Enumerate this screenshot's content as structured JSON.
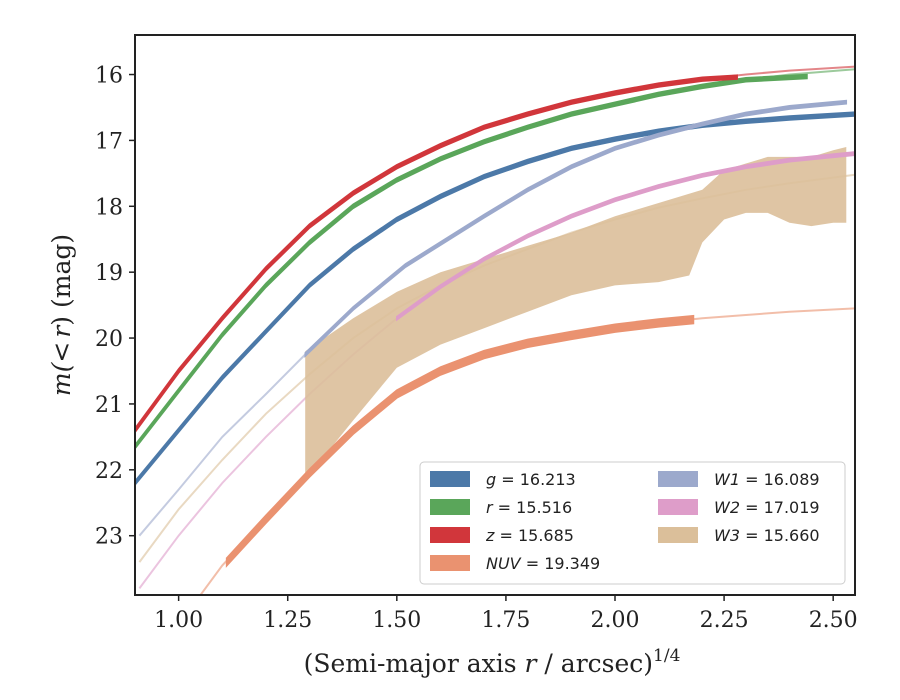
{
  "chart_data": {
    "type": "line",
    "xlabel_prefix": "(Semi-major axis ",
    "xlabel_var": "r",
    "xlabel_mid": " / arcsec)",
    "xlabel_exp": "1/4",
    "ylabel_prefix": "m(",
    "ylabel_lt": "<",
    "ylabel_var": "r",
    "ylabel_suffix": ") (mag)",
    "xlim": [
      0.9,
      2.55
    ],
    "ylim": [
      23.9,
      15.4
    ],
    "y_inverted": true,
    "x_ticks": [
      "1.00",
      "1.25",
      "1.50",
      "1.75",
      "2.00",
      "2.25",
      "2.50"
    ],
    "y_ticks": [
      "16",
      "17",
      "18",
      "19",
      "20",
      "21",
      "22",
      "23"
    ],
    "legend": {
      "placement": "lower-right",
      "entries": [
        {
          "band": "g",
          "value": "16.213",
          "color": "#4c79a8"
        },
        {
          "band": "W1",
          "value": "16.089",
          "color": "#9ca9cc"
        },
        {
          "band": "r",
          "value": "15.516",
          "color": "#5aa65a"
        },
        {
          "band": "W2",
          "value": "17.019",
          "color": "#de9dc9"
        },
        {
          "band": "z",
          "value": "15.685",
          "color": "#d1363b"
        },
        {
          "band": "W3",
          "value": "15.660",
          "color": "#dbbf9a"
        },
        {
          "band": "NUV",
          "value": "19.349",
          "color": "#ea9270"
        }
      ]
    },
    "series": [
      {
        "band": "g",
        "color": "#4c79a8",
        "fit": {
          "x": [
            0.9,
            1.0,
            1.1,
            1.2,
            1.3,
            1.4,
            1.5,
            1.6,
            1.7,
            1.8,
            1.9,
            2.0,
            2.1,
            2.2,
            2.3,
            2.4,
            2.55
          ],
          "y": [
            22.2,
            21.4,
            20.6,
            19.9,
            19.2,
            18.65,
            18.2,
            17.85,
            17.55,
            17.32,
            17.12,
            16.98,
            16.86,
            16.77,
            16.71,
            16.66,
            16.6
          ]
        },
        "obs": {
          "x": [
            0.9,
            1.0,
            1.1,
            1.2,
            1.3,
            1.4,
            1.5,
            1.6,
            1.7,
            1.8,
            1.9,
            2.0,
            2.1,
            2.2,
            2.3,
            2.4,
            2.55
          ],
          "y": [
            22.2,
            21.4,
            20.6,
            19.9,
            19.2,
            18.65,
            18.2,
            17.85,
            17.55,
            17.32,
            17.12,
            16.98,
            16.86,
            16.77,
            16.71,
            16.66,
            16.6
          ],
          "halfwidth": 0.03
        }
      },
      {
        "band": "r",
        "color": "#5aa65a",
        "fit": {
          "x": [
            0.9,
            1.0,
            1.1,
            1.2,
            1.3,
            1.4,
            1.5,
            1.6,
            1.7,
            1.8,
            1.9,
            2.0,
            2.1,
            2.2,
            2.3,
            2.4,
            2.55
          ],
          "y": [
            21.65,
            20.8,
            19.95,
            19.2,
            18.55,
            18.0,
            17.6,
            17.28,
            17.02,
            16.8,
            16.6,
            16.45,
            16.3,
            16.18,
            16.08,
            16.0,
            15.92
          ]
        },
        "obs": {
          "x": [
            0.9,
            1.0,
            1.1,
            1.2,
            1.3,
            1.4,
            1.5,
            1.6,
            1.7,
            1.8,
            1.9,
            2.0,
            2.1,
            2.2,
            2.3,
            2.44
          ],
          "y": [
            21.65,
            20.8,
            19.95,
            19.2,
            18.55,
            18.0,
            17.6,
            17.28,
            17.02,
            16.8,
            16.6,
            16.45,
            16.3,
            16.18,
            16.08,
            16.03
          ],
          "halfwidth": 0.03
        }
      },
      {
        "band": "z",
        "color": "#d1363b",
        "fit": {
          "x": [
            0.9,
            1.0,
            1.1,
            1.2,
            1.3,
            1.4,
            1.5,
            1.6,
            1.7,
            1.8,
            1.9,
            2.0,
            2.1,
            2.2,
            2.3,
            2.4,
            2.55
          ],
          "y": [
            21.4,
            20.5,
            19.7,
            18.95,
            18.3,
            17.8,
            17.4,
            17.08,
            16.8,
            16.6,
            16.42,
            16.28,
            16.16,
            16.07,
            16.0,
            15.94,
            15.88
          ]
        },
        "obs": {
          "x": [
            0.9,
            1.0,
            1.1,
            1.2,
            1.3,
            1.4,
            1.5,
            1.6,
            1.7,
            1.8,
            1.9,
            2.0,
            2.1,
            2.2,
            2.28
          ],
          "y": [
            21.4,
            20.5,
            19.7,
            18.95,
            18.3,
            17.8,
            17.4,
            17.08,
            16.8,
            16.6,
            16.42,
            16.28,
            16.16,
            16.07,
            16.04
          ],
          "halfwidth": 0.03
        }
      },
      {
        "band": "W1",
        "color": "#9ca9cc",
        "fit": {
          "x": [
            0.91,
            1.0,
            1.1,
            1.2,
            1.29
          ],
          "y": [
            23.0,
            22.3,
            21.5,
            20.85,
            20.25
          ]
        },
        "obs": {
          "x": [
            1.29,
            1.4,
            1.52,
            1.7,
            1.8,
            1.9,
            2.0,
            2.1,
            2.2,
            2.3,
            2.4,
            2.53
          ],
          "y": [
            20.25,
            19.55,
            18.9,
            18.15,
            17.75,
            17.4,
            17.12,
            16.92,
            16.75,
            16.6,
            16.5,
            16.42
          ],
          "halfwidth": 0.025
        }
      },
      {
        "band": "W2",
        "color": "#de9dc9",
        "fit": {
          "x": [
            0.91,
            1.0,
            1.1,
            1.2,
            1.3,
            1.4,
            1.5,
            1.6,
            1.7,
            1.8,
            1.9,
            2.0,
            2.1,
            2.2,
            2.3,
            2.4,
            2.55
          ],
          "y": [
            23.8,
            23.0,
            22.2,
            21.5,
            20.85,
            20.25,
            19.7,
            19.22,
            18.8,
            18.45,
            18.15,
            17.9,
            17.7,
            17.53,
            17.4,
            17.3,
            17.2
          ]
        },
        "obs": {
          "x": [
            1.5,
            1.6,
            1.7,
            1.8,
            1.9,
            2.0,
            2.1,
            2.2,
            2.3,
            2.4,
            2.55
          ],
          "y": [
            19.7,
            19.22,
            18.8,
            18.45,
            18.15,
            17.9,
            17.7,
            17.53,
            17.4,
            17.3,
            17.2
          ],
          "halfwidth": 0.025
        }
      },
      {
        "band": "W3",
        "color": "#dbbf9a",
        "fit": {
          "x": [
            0.91,
            1.0,
            1.1,
            1.2,
            1.3,
            1.4,
            1.5,
            1.6,
            1.7,
            1.8,
            1.9,
            2.0,
            2.1,
            2.2,
            2.3,
            2.4,
            2.55
          ],
          "y": [
            23.4,
            22.6,
            21.85,
            21.15,
            20.55,
            20.0,
            19.55,
            19.2,
            18.9,
            18.65,
            18.4,
            18.2,
            18.02,
            17.88,
            17.75,
            17.65,
            17.52
          ]
        },
        "band_upper": {
          "x": [
            1.29,
            1.4,
            1.5,
            1.6,
            1.7,
            1.8,
            1.9,
            2.0,
            2.1,
            2.2,
            2.25,
            2.3,
            2.35,
            2.4,
            2.45,
            2.5,
            2.53
          ],
          "y": [
            20.2,
            19.7,
            19.3,
            19.0,
            18.8,
            18.6,
            18.4,
            18.15,
            17.95,
            17.75,
            17.45,
            17.35,
            17.25,
            17.25,
            17.25,
            17.15,
            17.1
          ]
        },
        "band_lower": {
          "x": [
            1.29,
            1.4,
            1.5,
            1.6,
            1.7,
            1.8,
            1.9,
            2.0,
            2.1,
            2.17,
            2.2,
            2.25,
            2.3,
            2.35,
            2.4,
            2.45,
            2.5,
            2.53
          ],
          "y": [
            22.15,
            21.25,
            20.45,
            20.1,
            19.85,
            19.6,
            19.35,
            19.2,
            19.15,
            19.05,
            18.55,
            18.2,
            18.1,
            18.1,
            18.25,
            18.3,
            18.25,
            18.25
          ]
        }
      },
      {
        "band": "NUV",
        "color": "#ea9270",
        "fit": {
          "x": [
            1.05,
            1.1,
            1.2,
            1.3,
            1.4,
            1.5,
            1.6,
            1.7,
            1.8,
            1.9,
            2.0,
            2.1,
            2.2,
            2.3,
            2.4,
            2.55
          ],
          "y": [
            23.9,
            23.45,
            22.75,
            22.05,
            21.4,
            20.85,
            20.5,
            20.25,
            20.08,
            19.96,
            19.85,
            19.77,
            19.7,
            19.65,
            19.6,
            19.55
          ]
        },
        "obs": {
          "x": [
            1.11,
            1.2,
            1.3,
            1.4,
            1.5,
            1.6,
            1.7,
            1.8,
            1.9,
            2.0,
            2.1,
            2.18
          ],
          "y": [
            23.4,
            22.75,
            22.05,
            21.4,
            20.85,
            20.5,
            20.25,
            20.08,
            19.96,
            19.85,
            19.77,
            19.72
          ],
          "halfwidth": 0.06
        }
      }
    ]
  }
}
